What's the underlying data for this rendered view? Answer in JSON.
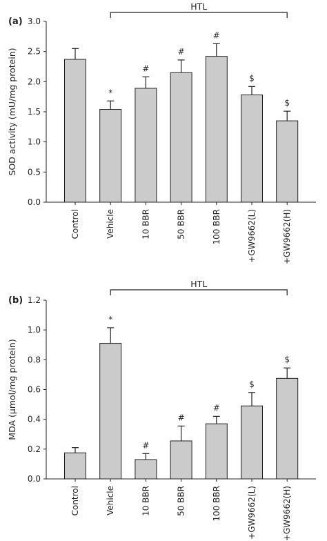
{
  "chart_data": [
    {
      "type": "bar",
      "panel_label": "(a)",
      "ylabel": "SOD activity (mU/mg protein)",
      "ylim": [
        0,
        3.0
      ],
      "yticks": [
        "0.0",
        "0.5",
        "1.0",
        "1.5",
        "2.0",
        "2.5",
        "3.0"
      ],
      "categories": [
        "Control",
        "Vehicle",
        "10 BBR",
        "50 BBR",
        "100 BBR",
        "+GW9662(L)",
        "+GW9662(H)"
      ],
      "values": [
        2.37,
        1.54,
        1.89,
        2.15,
        2.42,
        1.78,
        1.35
      ],
      "errors": [
        0.18,
        0.14,
        0.19,
        0.21,
        0.21,
        0.14,
        0.16
      ],
      "annotations": [
        "",
        "*",
        "#",
        "#",
        "#",
        "$",
        "$"
      ],
      "bracket": {
        "label": "HTL",
        "from": "Vehicle",
        "to": "+GW9662(H)"
      },
      "bar_color": "#cbcbcb"
    },
    {
      "type": "bar",
      "panel_label": "(b)",
      "ylabel": "MDA (μmol/mg protein)",
      "ylim": [
        0,
        1.2
      ],
      "yticks": [
        "0.0",
        "0.2",
        "0.4",
        "0.6",
        "0.8",
        "1.0",
        "1.2"
      ],
      "categories": [
        "Control",
        "Vehicle",
        "10 BBR",
        "50 BBR",
        "100 BBR",
        "+GW9662(L)",
        "+GW9662(H)"
      ],
      "values": [
        0.175,
        0.91,
        0.13,
        0.255,
        0.37,
        0.49,
        0.675
      ],
      "errors": [
        0.035,
        0.105,
        0.04,
        0.1,
        0.05,
        0.09,
        0.07
      ],
      "annotations": [
        "",
        "*",
        "#",
        "#",
        "#",
        "$",
        "$"
      ],
      "bracket": {
        "label": "HTL",
        "from": "Vehicle",
        "to": "+GW9662(H)"
      },
      "bar_color": "#cbcbcb"
    }
  ]
}
